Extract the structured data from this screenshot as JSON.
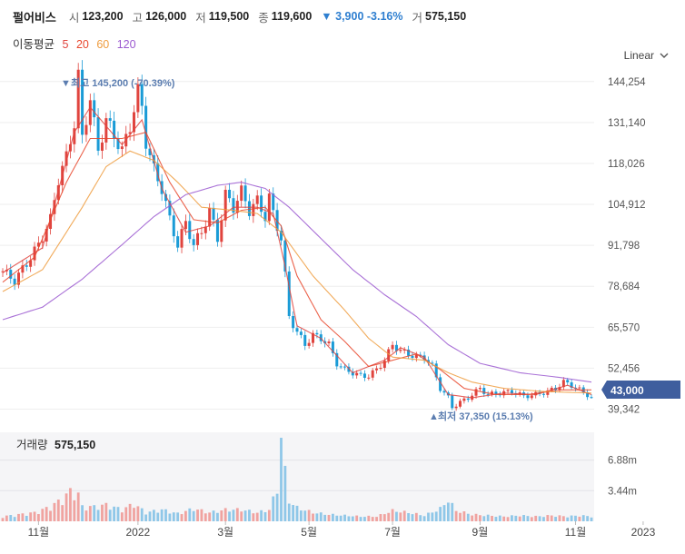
{
  "header": {
    "name": "펄어비스",
    "open_label": "시",
    "open": "123,200",
    "high_label": "고",
    "high": "126,000",
    "low_label": "저",
    "low": "119,500",
    "close_label": "종",
    "close": "119,600",
    "change": "▼ 3,900 -3.16%",
    "volume_label": "거",
    "volume": "575,150"
  },
  "ma_legend": {
    "title": "이동평균",
    "periods": [
      {
        "label": "5",
        "color": "#e0443e"
      },
      {
        "label": "20",
        "color": "#e8462c"
      },
      {
        "label": "60",
        "color": "#ef9c3e"
      },
      {
        "label": "120",
        "color": "#9b59d0"
      }
    ]
  },
  "scale_selector": {
    "label": "Linear"
  },
  "colors": {
    "up": "#e0443e",
    "down": "#1a9bd6",
    "last_price_bg": "#3f5e9e",
    "annotation": "#5b7db0"
  },
  "chart_data": {
    "type": "candlestick",
    "price_axis": {
      "ticks": [
        "144,254",
        "131,140",
        "118,026",
        "104,912",
        "91,798",
        "78,684",
        "65,570",
        "52,456",
        "39,342"
      ],
      "ylim": [
        36000,
        150000
      ]
    },
    "x_axis": {
      "ticks": [
        "11월",
        "2022",
        "3월",
        "5월",
        "7월",
        "9월",
        "11월",
        "2023"
      ]
    },
    "last_price": "43,000",
    "high_annotation": "최고 145,200 (-70.39%)",
    "low_annotation": "최저 37,350 (15.13%)",
    "price_series": [
      [
        0,
        83500
      ],
      [
        3,
        80500
      ],
      [
        6,
        86000
      ],
      [
        9,
        92000
      ],
      [
        12,
        100000
      ],
      [
        14,
        113000
      ],
      [
        16,
        120000
      ],
      [
        18,
        131000
      ],
      [
        19,
        146000
      ],
      [
        20,
        126000
      ],
      [
        22,
        139000
      ],
      [
        24,
        122000
      ],
      [
        26,
        132000
      ],
      [
        28,
        127000
      ],
      [
        30,
        122000
      ],
      [
        32,
        130000
      ],
      [
        34,
        141000
      ],
      [
        35,
        136000
      ],
      [
        36,
        125000
      ],
      [
        38,
        116000
      ],
      [
        40,
        110000
      ],
      [
        42,
        100000
      ],
      [
        44,
        92000
      ],
      [
        46,
        99000
      ],
      [
        48,
        92000
      ],
      [
        50,
        96000
      ],
      [
        52,
        103000
      ],
      [
        54,
        94000
      ],
      [
        56,
        108000
      ],
      [
        58,
        104000
      ],
      [
        60,
        109000
      ],
      [
        62,
        103000
      ],
      [
        64,
        106000
      ],
      [
        66,
        101000
      ],
      [
        67,
        107000
      ],
      [
        68,
        102000
      ],
      [
        70,
        94000
      ],
      [
        71,
        82000
      ],
      [
        72,
        69000
      ],
      [
        74,
        64000
      ],
      [
        76,
        60000
      ],
      [
        78,
        63000
      ],
      [
        80,
        62000
      ],
      [
        82,
        60000
      ],
      [
        84,
        54000
      ],
      [
        86,
        52000
      ],
      [
        88,
        51000
      ],
      [
        90,
        50000
      ],
      [
        92,
        50000
      ],
      [
        94,
        52000
      ],
      [
        96,
        55000
      ],
      [
        98,
        60000
      ],
      [
        100,
        58000
      ],
      [
        102,
        57000
      ],
      [
        104,
        56000
      ],
      [
        106,
        56000
      ],
      [
        108,
        53000
      ],
      [
        110,
        46000
      ],
      [
        112,
        43000
      ],
      [
        113,
        40000
      ],
      [
        115,
        41500
      ],
      [
        117,
        43000
      ],
      [
        120,
        46000
      ],
      [
        122,
        44000
      ],
      [
        125,
        44500
      ],
      [
        128,
        45000
      ],
      [
        131,
        43500
      ],
      [
        134,
        44000
      ],
      [
        137,
        45000
      ],
      [
        139,
        46000
      ],
      [
        141,
        48000
      ],
      [
        143,
        47000
      ],
      [
        145,
        45500
      ],
      [
        147,
        44000
      ],
      [
        148,
        43000
      ]
    ],
    "ma_series": [
      {
        "name": "5",
        "points": [
          [
            0,
            83000
          ],
          [
            10,
            91000
          ],
          [
            18,
            128000
          ],
          [
            22,
            136000
          ],
          [
            30,
            124000
          ],
          [
            35,
            132000
          ],
          [
            40,
            110000
          ],
          [
            46,
            96000
          ],
          [
            52,
            98000
          ],
          [
            58,
            104000
          ],
          [
            64,
            104000
          ],
          [
            68,
            102000
          ],
          [
            71,
            85000
          ],
          [
            74,
            66000
          ],
          [
            80,
            62000
          ],
          [
            88,
            51000
          ],
          [
            96,
            55000
          ],
          [
            100,
            59000
          ],
          [
            106,
            56000
          ],
          [
            112,
            44000
          ],
          [
            118,
            43000
          ],
          [
            126,
            44500
          ],
          [
            134,
            44000
          ],
          [
            142,
            47000
          ],
          [
            148,
            44000
          ]
        ]
      },
      {
        "name": "20",
        "points": [
          [
            0,
            80000
          ],
          [
            8,
            88000
          ],
          [
            16,
            112000
          ],
          [
            22,
            126000
          ],
          [
            30,
            126000
          ],
          [
            36,
            128000
          ],
          [
            42,
            112000
          ],
          [
            48,
            100000
          ],
          [
            54,
            99000
          ],
          [
            60,
            103000
          ],
          [
            66,
            104000
          ],
          [
            70,
            98000
          ],
          [
            74,
            82000
          ],
          [
            80,
            68000
          ],
          [
            86,
            61000
          ],
          [
            92,
            53000
          ],
          [
            98,
            55000
          ],
          [
            104,
            57000
          ],
          [
            110,
            52000
          ],
          [
            116,
            46000
          ],
          [
            124,
            44000
          ],
          [
            132,
            44000
          ],
          [
            140,
            45500
          ],
          [
            148,
            45500
          ]
        ]
      },
      {
        "name": "60",
        "points": [
          [
            0,
            77000
          ],
          [
            10,
            84000
          ],
          [
            20,
            104000
          ],
          [
            26,
            117000
          ],
          [
            32,
            122000
          ],
          [
            38,
            119000
          ],
          [
            44,
            112000
          ],
          [
            50,
            104000
          ],
          [
            58,
            103000
          ],
          [
            64,
            102000
          ],
          [
            70,
            96000
          ],
          [
            78,
            82000
          ],
          [
            86,
            71000
          ],
          [
            92,
            62000
          ],
          [
            98,
            56000
          ],
          [
            106,
            55000
          ],
          [
            112,
            51000
          ],
          [
            118,
            48000
          ],
          [
            126,
            46000
          ],
          [
            136,
            45000
          ],
          [
            148,
            44500
          ]
        ]
      },
      {
        "name": "120",
        "points": [
          [
            0,
            68000
          ],
          [
            10,
            72000
          ],
          [
            20,
            81000
          ],
          [
            30,
            92000
          ],
          [
            38,
            101000
          ],
          [
            46,
            108000
          ],
          [
            54,
            111000
          ],
          [
            60,
            112000
          ],
          [
            66,
            110000
          ],
          [
            72,
            104000
          ],
          [
            80,
            94000
          ],
          [
            88,
            84000
          ],
          [
            96,
            76000
          ],
          [
            104,
            69000
          ],
          [
            112,
            60000
          ],
          [
            120,
            54000
          ],
          [
            130,
            51000
          ],
          [
            140,
            49500
          ],
          [
            148,
            48000
          ]
        ]
      }
    ],
    "volume_panel": {
      "title": "거래량",
      "value": "575,150",
      "ticks": [
        "6.88m",
        "3.44m"
      ],
      "ylim": [
        0,
        10000000
      ],
      "series": [
        [
          0,
          500000
        ],
        [
          4,
          700000
        ],
        [
          8,
          900000
        ],
        [
          12,
          1500000
        ],
        [
          15,
          2300000
        ],
        [
          17,
          3100000
        ],
        [
          19,
          2800000
        ],
        [
          20,
          1500000
        ],
        [
          23,
          1500000
        ],
        [
          26,
          1700000
        ],
        [
          30,
          1200000
        ],
        [
          33,
          1800000
        ],
        [
          36,
          900000
        ],
        [
          40,
          1200000
        ],
        [
          44,
          800000
        ],
        [
          48,
          1300000
        ],
        [
          52,
          900000
        ],
        [
          56,
          1200000
        ],
        [
          60,
          1200000
        ],
        [
          64,
          900000
        ],
        [
          67,
          1200000
        ],
        [
          69,
          3300000
        ],
        [
          70,
          8900000
        ],
        [
          71,
          5000000
        ],
        [
          72,
          2100000
        ],
        [
          74,
          1400000
        ],
        [
          78,
          900000
        ],
        [
          82,
          700000
        ],
        [
          86,
          600000
        ],
        [
          90,
          500000
        ],
        [
          94,
          500000
        ],
        [
          98,
          1100000
        ],
        [
          102,
          900000
        ],
        [
          106,
          600000
        ],
        [
          110,
          1300000
        ],
        [
          112,
          2200000
        ],
        [
          114,
          1100000
        ],
        [
          118,
          700000
        ],
        [
          122,
          600000
        ],
        [
          126,
          500000
        ],
        [
          130,
          600000
        ],
        [
          134,
          500000
        ],
        [
          138,
          600000
        ],
        [
          142,
          500000
        ],
        [
          145,
          600000
        ],
        [
          148,
          500000
        ]
      ]
    }
  }
}
